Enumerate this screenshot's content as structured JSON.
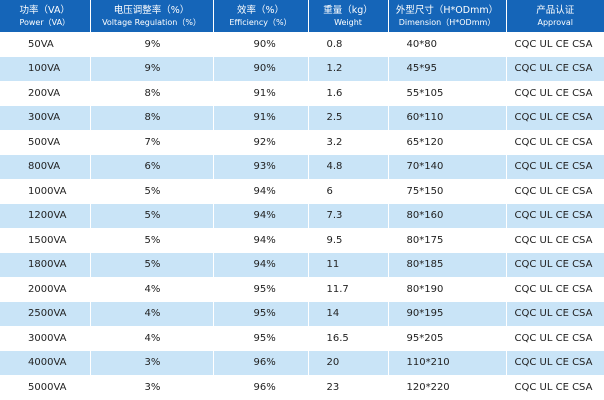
{
  "headers": [
    {
      "zh": "功率（VA）",
      "en": "Power（VA）"
    },
    {
      "zh": "电压调整率（%）",
      "en": "Voltage Regulation（%）"
    },
    {
      "zh": "效率（%）",
      "en": "Efficiency（%）"
    },
    {
      "zh": "重量（kg）",
      "en": "Weight"
    },
    {
      "zh": "外型尺寸（H*ODmm）",
      "en": "Dimension（H*ODmm）"
    },
    {
      "zh": "产品认证",
      "en": "Approval"
    }
  ],
  "rows": [
    {
      "power": "50VA",
      "regulation": "9%",
      "efficiency": "90%",
      "weight": "0.8",
      "dimension": "40*80",
      "approval": "CQC UL CE CSA"
    },
    {
      "power": "100VA",
      "regulation": "9%",
      "efficiency": "90%",
      "weight": "1.2",
      "dimension": "45*95",
      "approval": "CQC UL CE CSA"
    },
    {
      "power": "200VA",
      "regulation": "8%",
      "efficiency": "91%",
      "weight": "1.6",
      "dimension": "55*105",
      "approval": "CQC UL CE CSA"
    },
    {
      "power": "300VA",
      "regulation": "8%",
      "efficiency": "91%",
      "weight": "2.5",
      "dimension": "60*110",
      "approval": "CQC UL CE CSA"
    },
    {
      "power": "500VA",
      "regulation": "7%",
      "efficiency": "92%",
      "weight": "3.2",
      "dimension": "65*120",
      "approval": "CQC UL CE CSA"
    },
    {
      "power": "800VA",
      "regulation": "6%",
      "efficiency": "93%",
      "weight": "4.8",
      "dimension": "70*140",
      "approval": "CQC UL CE CSA"
    },
    {
      "power": "1000VA",
      "regulation": "5%",
      "efficiency": "94%",
      "weight": "6",
      "dimension": "75*150",
      "approval": "CQC UL CE CSA"
    },
    {
      "power": "1200VA",
      "regulation": "5%",
      "efficiency": "94%",
      "weight": "7.3",
      "dimension": "80*160",
      "approval": "CQC UL CE CSA"
    },
    {
      "power": "1500VA",
      "regulation": "5%",
      "efficiency": "94%",
      "weight": "9.5",
      "dimension": "80*175",
      "approval": "CQC UL CE CSA"
    },
    {
      "power": "1800VA",
      "regulation": "5%",
      "efficiency": "94%",
      "weight": "11",
      "dimension": "80*185",
      "approval": "CQC UL CE CSA"
    },
    {
      "power": "2000VA",
      "regulation": "4%",
      "efficiency": "95%",
      "weight": "11.7",
      "dimension": "80*190",
      "approval": "CQC UL CE CSA"
    },
    {
      "power": "2500VA",
      "regulation": "4%",
      "efficiency": "95%",
      "weight": "14",
      "dimension": "90*195",
      "approval": "CQC UL CE CSA"
    },
    {
      "power": "3000VA",
      "regulation": "4%",
      "efficiency": "95%",
      "weight": "16.5",
      "dimension": "95*205",
      "approval": "CQC UL CE CSA"
    },
    {
      "power": "4000VA",
      "regulation": "3%",
      "efficiency": "96%",
      "weight": "20",
      "dimension": "110*210",
      "approval": "CQC UL CE CSA"
    },
    {
      "power": "5000VA",
      "regulation": "3%",
      "efficiency": "96%",
      "weight": "23",
      "dimension": "120*220",
      "approval": "CQC UL CE CSA"
    }
  ],
  "colors": {
    "header_bg": "#1565b8",
    "header_text": "#ffffff",
    "stripe": "#c9e4f7",
    "body_text": "#222222"
  }
}
